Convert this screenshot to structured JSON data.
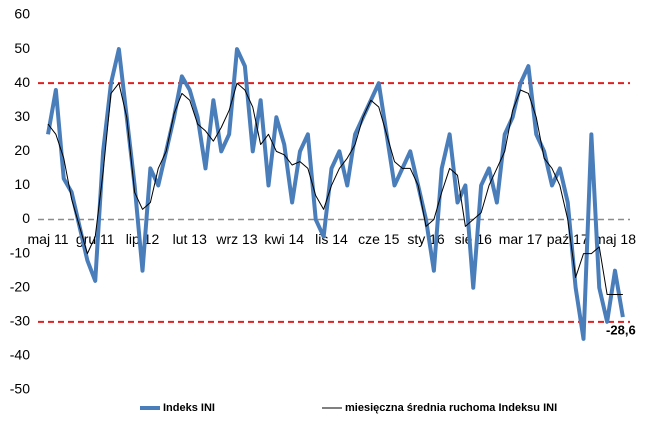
{
  "chart_data": {
    "type": "line",
    "categories": [
      "maj 11",
      null,
      null,
      null,
      null,
      null,
      "gru 11",
      null,
      null,
      null,
      null,
      null,
      "lip 12",
      null,
      null,
      null,
      null,
      null,
      "lut 13",
      null,
      null,
      null,
      null,
      null,
      "wrz 13",
      null,
      null,
      null,
      null,
      null,
      "kwi 14",
      null,
      null,
      null,
      null,
      null,
      "lis 14",
      null,
      null,
      null,
      null,
      null,
      "cze 15",
      null,
      null,
      null,
      null,
      null,
      "sty 16",
      null,
      null,
      null,
      null,
      null,
      "sie 16",
      null,
      null,
      null,
      null,
      null,
      "mar 17",
      null,
      null,
      null,
      null,
      null,
      "paź 17",
      null,
      null,
      null,
      null,
      null,
      "maj 18",
      null
    ],
    "series": [
      {
        "name": "Indeks INI",
        "color": "#4a7ebb",
        "width": 4,
        "values": [
          25,
          38,
          12,
          8,
          -2,
          -12,
          -18,
          20,
          40,
          50,
          30,
          10,
          -15,
          15,
          10,
          20,
          30,
          42,
          38,
          30,
          15,
          35,
          20,
          25,
          50,
          45,
          20,
          35,
          10,
          30,
          22,
          5,
          20,
          25,
          0,
          -5,
          15,
          20,
          10,
          25,
          30,
          35,
          40,
          25,
          10,
          15,
          20,
          10,
          0,
          -15,
          15,
          25,
          5,
          10,
          -20,
          10,
          15,
          5,
          25,
          30,
          40,
          45,
          25,
          20,
          10,
          15,
          5,
          -20,
          -35,
          25,
          -20,
          -30,
          -15,
          -28.6
        ],
        "value_labels": [
          null,
          null,
          null,
          null,
          null,
          null,
          null,
          null,
          null,
          null,
          null,
          null,
          null,
          null,
          null,
          null,
          null,
          null,
          null,
          null,
          null,
          null,
          null,
          null,
          null,
          null,
          null,
          null,
          null,
          null,
          null,
          null,
          null,
          null,
          null,
          null,
          null,
          null,
          null,
          null,
          null,
          null,
          null,
          null,
          null,
          null,
          null,
          null,
          null,
          null,
          null,
          null,
          null,
          null,
          null,
          null,
          null,
          null,
          null,
          null,
          null,
          null,
          null,
          null,
          null,
          null,
          null,
          null,
          null,
          null,
          null,
          null,
          null,
          "-28,6"
        ],
        "label_color": "#1f7fc4"
      },
      {
        "name": "miesięczna średnia ruchoma Indeksu INI",
        "color": "#000000",
        "width": 1,
        "values": [
          28,
          25,
          18,
          6,
          -2,
          -10,
          -5,
          14,
          37,
          40,
          30,
          8,
          3,
          5,
          15,
          20,
          31,
          37,
          35,
          28,
          26,
          23,
          27,
          32,
          40,
          38,
          33,
          22,
          25,
          20,
          19,
          16,
          17,
          15,
          7,
          3,
          10,
          15,
          18,
          22,
          30,
          35,
          33,
          25,
          17,
          15,
          15,
          10,
          -2,
          0,
          8,
          15,
          13,
          -2,
          0,
          2,
          10,
          15,
          20,
          32,
          38,
          37,
          30,
          18,
          15,
          10,
          0,
          -17,
          -10,
          -10,
          -8,
          -22,
          -22,
          -22
        ]
      }
    ],
    "ylim": [
      -50,
      60
    ],
    "yticks": [
      -50,
      -40,
      -30,
      -20,
      -10,
      0,
      10,
      20,
      30,
      40,
      50,
      60
    ],
    "hlines": [
      {
        "value": 40,
        "color": "#e02020"
      },
      {
        "value": -30,
        "color": "#e02020"
      },
      {
        "value": 0,
        "color": "#8c8c8c"
      }
    ]
  }
}
